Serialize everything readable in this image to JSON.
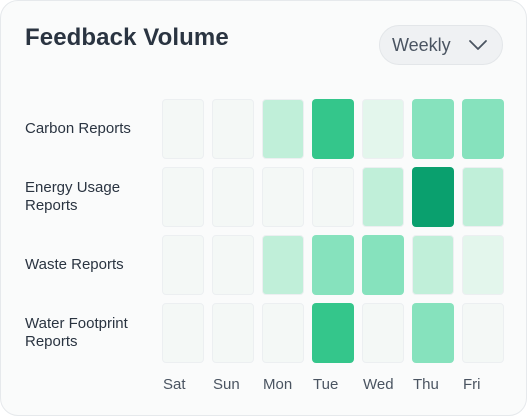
{
  "header": {
    "title": "Feedback Volume"
  },
  "period_select": {
    "value": "Weekly",
    "icon": "chevron-down-icon"
  },
  "chart_data": {
    "type": "heatmap",
    "title": "Feedback Volume",
    "rows": [
      "Carbon Reports",
      "Energy Usage Reports",
      "Waste Reports",
      "Water Footprint Reports"
    ],
    "row_labels_display": [
      [
        "Carbon Reports"
      ],
      [
        "Energy Usage",
        "Reports"
      ],
      [
        "Waste Reports"
      ],
      [
        "Water Footprint",
        "Reports"
      ]
    ],
    "columns": [
      "Sat",
      "Sun",
      "Mon",
      "Tue",
      "Wed",
      "Thu",
      "Fri"
    ],
    "values": [
      [
        0,
        0,
        2,
        4,
        1,
        3,
        3
      ],
      [
        0,
        0,
        0,
        0,
        2,
        5,
        2
      ],
      [
        0,
        0,
        2,
        3,
        3,
        2,
        1
      ],
      [
        0,
        0,
        0,
        4,
        0,
        3,
        0
      ]
    ],
    "levels": 5,
    "colors": [
      "#f4f8f6",
      "#e3f6ec",
      "#c0efd9",
      "#86e2bd",
      "#34c68b",
      "#0aa06e"
    ]
  }
}
